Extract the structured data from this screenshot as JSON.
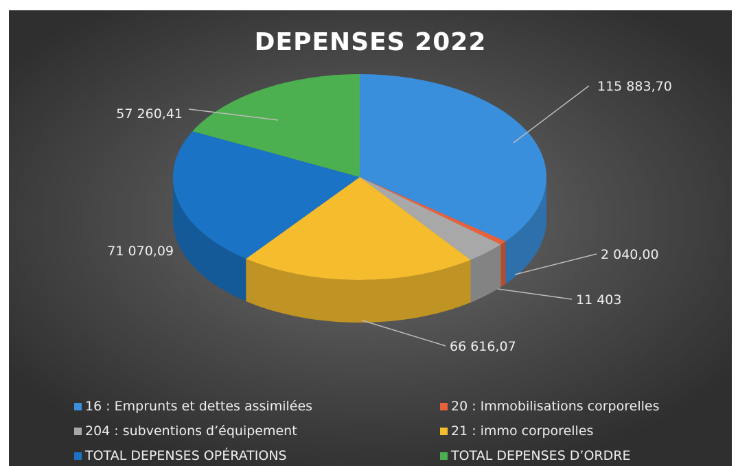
{
  "chart_data": {
    "type": "pie",
    "title": "DEPENSES 2022",
    "style": "3d",
    "legend_position": "bottom",
    "categories": [
      "16 : Emprunts et dettes assimilées",
      "20 : Immobilisations corporelles",
      "204 : subventions d’équipement",
      "21 : immo corporelles",
      "TOTAL DEPENSES OPÉRATIONS",
      "TOTAL DEPENSES D’ORDRE"
    ],
    "values": [
      115883.7,
      2040.0,
      11403,
      66616.07,
      71070.09,
      57260.41
    ],
    "data_labels": [
      "115 883,70",
      "2 040,00",
      "11 403",
      "66 616,07",
      "71 070,09",
      "57 260,41"
    ],
    "colors": [
      "#3a8fdc",
      "#e8613a",
      "#a8a8a8",
      "#f5bd2e",
      "#1a73c4",
      "#4caf50"
    ]
  }
}
